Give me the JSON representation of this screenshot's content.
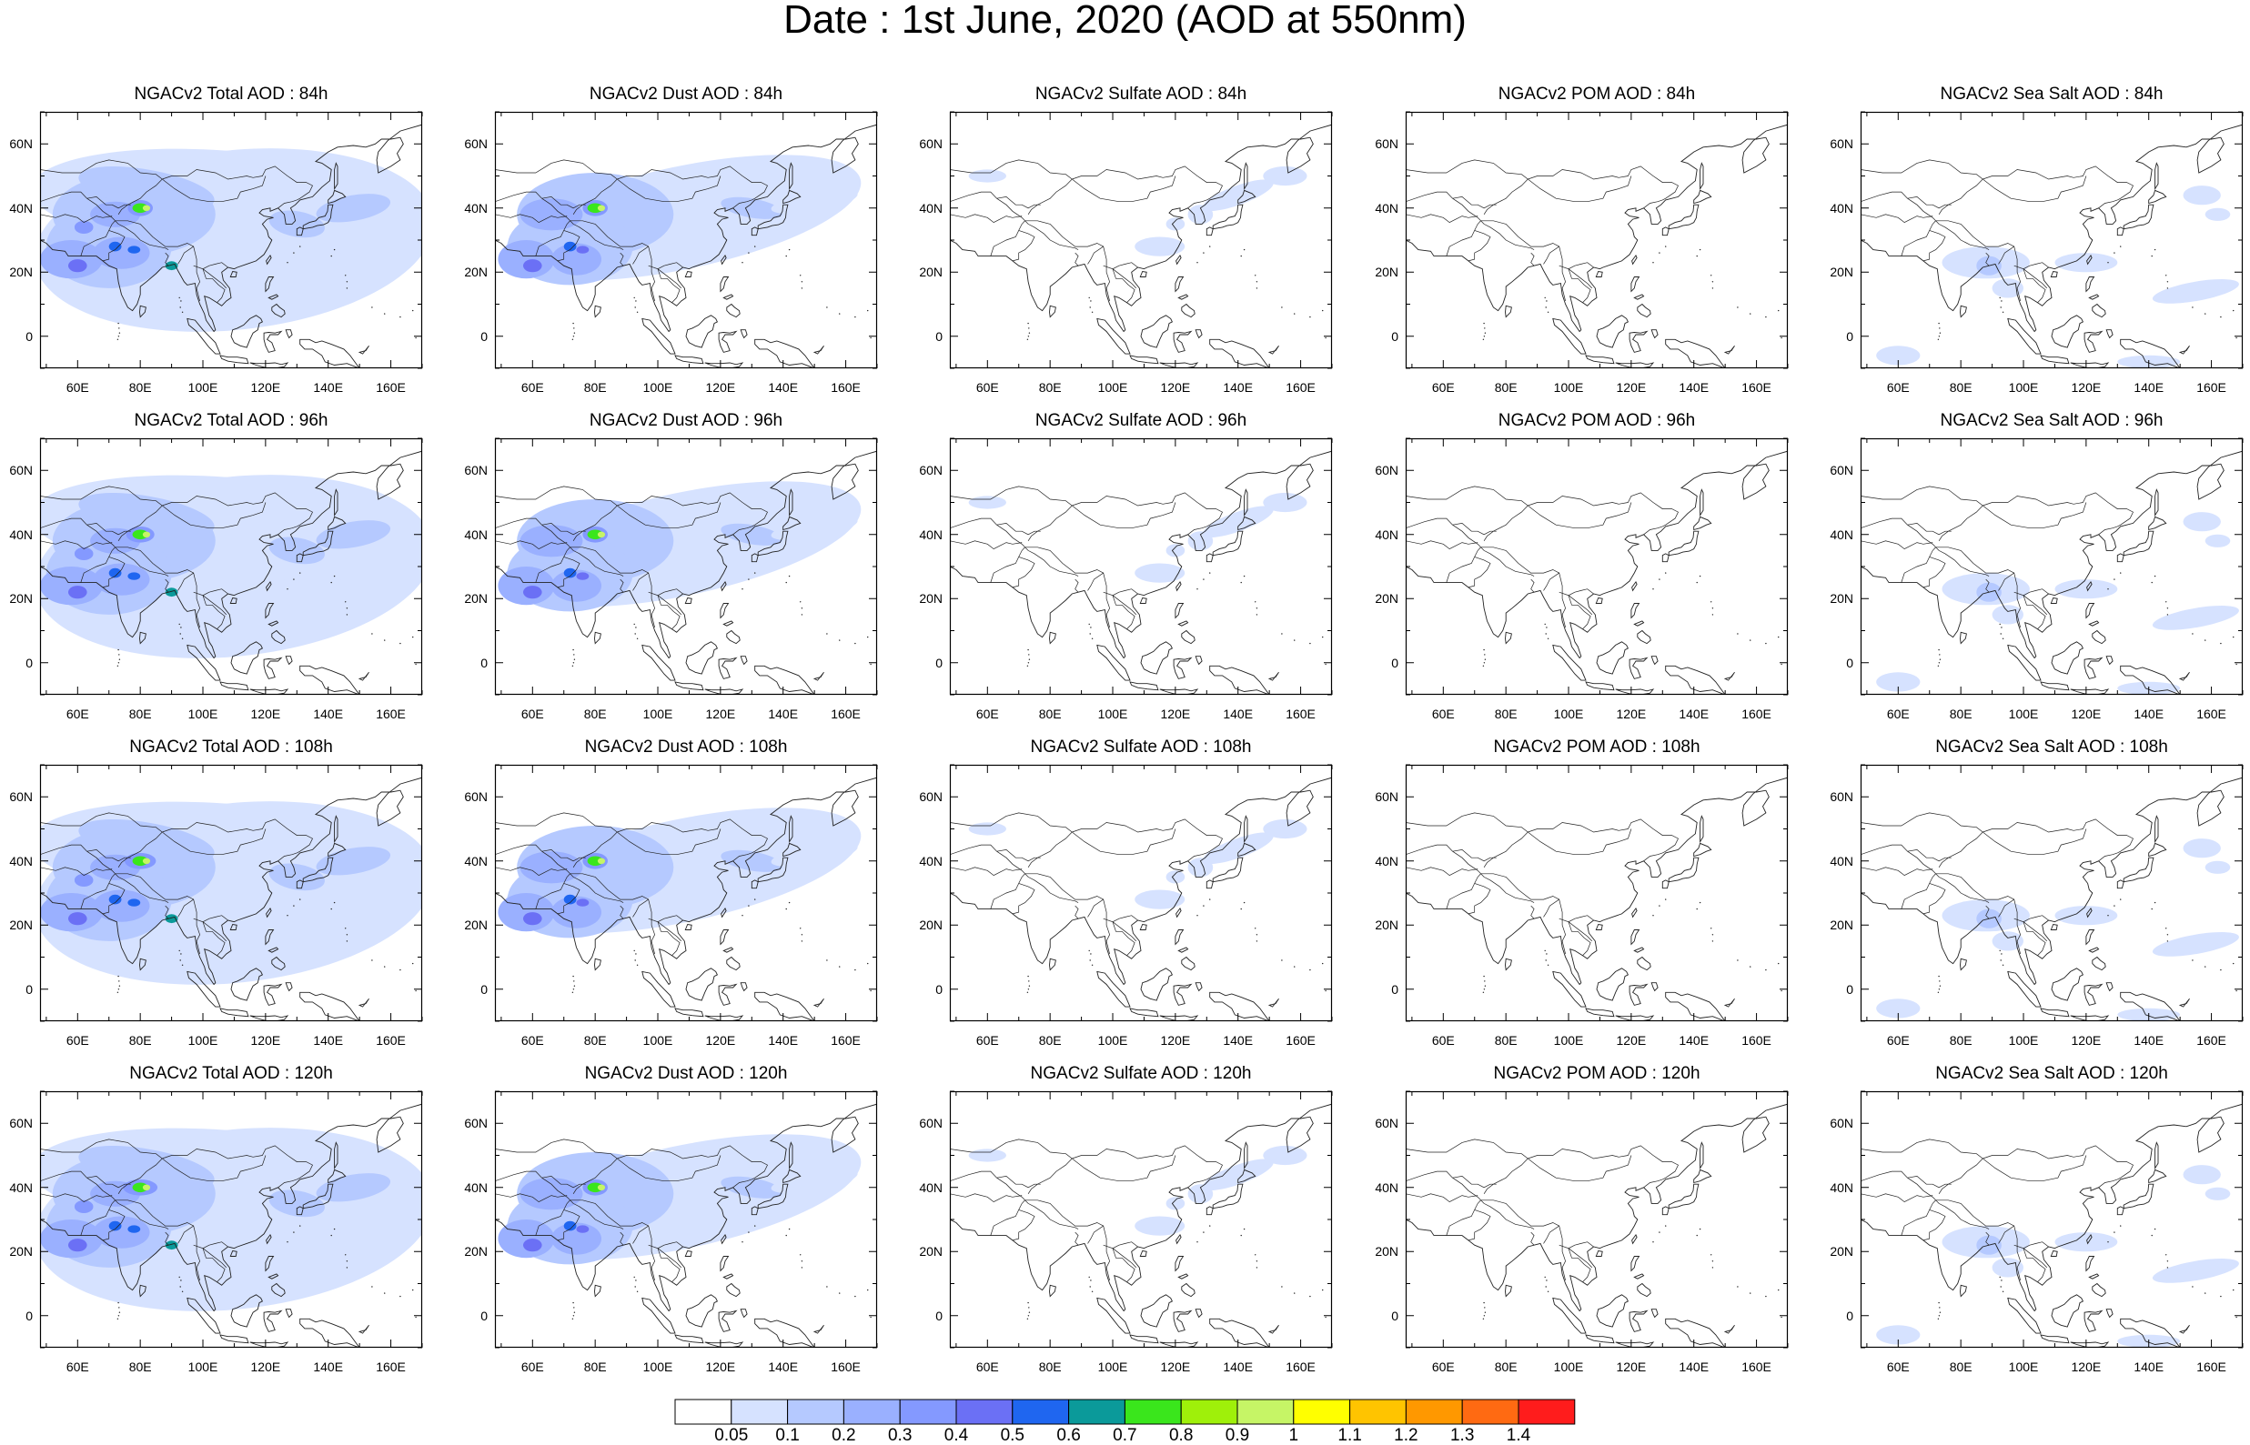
{
  "title": "Date : 1st June, 2020 (AOD at 550nm)",
  "rows": [
    {
      "titles": [
        "NGACv2 Total AOD : 84h",
        "NGACv2 Dust AOD : 84h",
        "NGACv2 Sulfate AOD : 84h",
        "NGACv2 POM AOD : 84h",
        "NGACv2 Sea Salt AOD : 84h"
      ]
    },
    {
      "titles": [
        "NGACv2 Total AOD : 96h",
        "NGACv2 Dust AOD : 96h",
        "NGACv2 Sulfate AOD : 96h",
        "NGACv2 POM AOD : 96h",
        "NGACv2 Sea Salt AOD : 96h"
      ]
    },
    {
      "titles": [
        "NGACv2 Total AOD : 108h",
        "NGACv2 Dust AOD : 108h",
        "NGACv2 Sulfate AOD : 108h",
        "NGACv2 POM AOD : 108h",
        "NGACv2 Sea Salt AOD : 108h"
      ]
    },
    {
      "titles": [
        "NGACv2 Total AOD : 120h",
        "NGACv2 Dust AOD : 120h",
        "NGACv2 Sulfate AOD : 120h",
        "NGACv2 POM AOD : 120h",
        "NGACv2 Sea Salt  AOD : 120h"
      ]
    }
  ],
  "axes": {
    "x_ticks": [
      "60E",
      "80E",
      "100E",
      "120E",
      "140E",
      "160E"
    ],
    "y_ticks": [
      "60N",
      "40N",
      "20N",
      "0"
    ],
    "lon_range": [
      48,
      170
    ],
    "lat_range": [
      -10,
      70
    ]
  },
  "colorbar": {
    "labels": [
      "0.05",
      "0.1",
      "0.2",
      "0.3",
      "0.4",
      "0.5",
      "0.6",
      "0.7",
      "0.8",
      "0.9",
      "1",
      "1.1",
      "1.2",
      "1.3",
      "1.4"
    ],
    "colors": [
      "#ffffff",
      "#d6e2ff",
      "#b5c9ff",
      "#9ab0ff",
      "#8499ff",
      "#6b70f5",
      "#1f66f0",
      "#0b9a9a",
      "#3ae61c",
      "#9ff00a",
      "#c6f566",
      "#ffff00",
      "#ffc400",
      "#ff9800",
      "#ff6a12",
      "#ff1c1c"
    ]
  }
}
